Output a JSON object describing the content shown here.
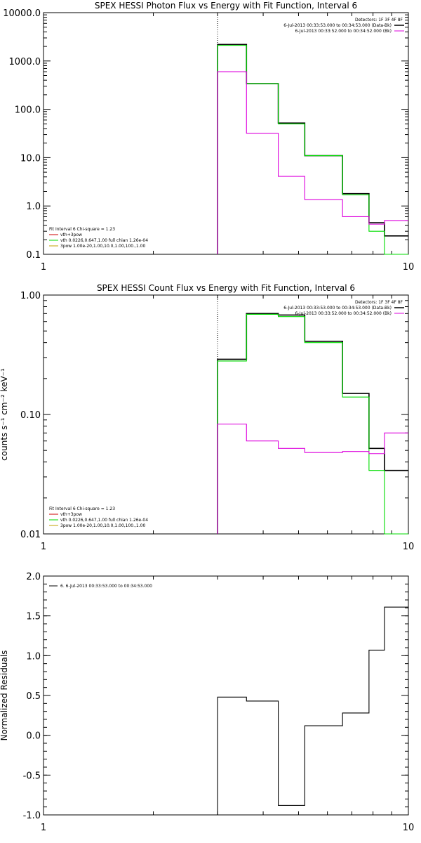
{
  "colors": {
    "data": "#000000",
    "green": "#00dd00",
    "magenta": "#dd00dd",
    "olive": "#c0a000",
    "red": "#cc0000"
  },
  "chart_data": [
    {
      "type": "line",
      "title": "SPEX HESSI Photon Flux vs Energy with Fit Function, Interval 6",
      "ylabel": "",
      "xscale": "log",
      "yscale": "log",
      "xlim": [
        1,
        10
      ],
      "ylim": [
        0.1,
        10000
      ],
      "xtick_values": [
        1,
        10
      ],
      "xtick_labels": [
        "1",
        "10"
      ],
      "ytick_values": [
        0.1,
        1,
        10,
        100,
        1000,
        10000
      ],
      "ytick_labels": [
        "0.1",
        "1.0",
        "10.0",
        "100.0",
        "1000.0",
        "10000.0"
      ],
      "vline": 3.0,
      "legend_top": [
        {
          "text": "Detectors: 1F 3F 4F 8F",
          "color": "",
          "lw": 0
        },
        {
          "text": "6-Jul-2013 00:33:53.000 to 00:34:53.000 (Data-Bk)",
          "color": "#000000",
          "lw": 1.5
        },
        {
          "text": "6-Jul-2013 00:33:52.000 to 00:34:52.000 (Bk)",
          "color": "#dd00dd",
          "lw": 1
        }
      ],
      "legend_bottom": [
        {
          "text": "Fit Interval  6    Chi-square = 1.23",
          "color": "",
          "lw": 0
        },
        {
          "text": "vth+3pow",
          "color": "#cc0000",
          "lw": 1
        },
        {
          "text": "vth 0.0226,0.647,1.00   full chian 1.26e-04",
          "color": "#00dd00",
          "lw": 1
        },
        {
          "text": "3pow 1.00e-20,1.00,10.0,1.00,100.,1.00",
          "color": "#c0a000",
          "lw": 1
        }
      ],
      "series": [
        {
          "role": "data",
          "color": "#000000",
          "edges": [
            3.0,
            3.6,
            4.4,
            5.2,
            6.6,
            7.8,
            8.6,
            10.0
          ],
          "values": [
            2200,
            340,
            52,
            11,
            1.8,
            0.45,
            0.24
          ]
        },
        {
          "role": "model",
          "color": "#00dd00",
          "edges": [
            3.0,
            3.6,
            4.4,
            5.2,
            6.6,
            7.8,
            8.6,
            10.0
          ],
          "values": [
            2100,
            340,
            50,
            11,
            1.7,
            0.3,
            0.1
          ]
        },
        {
          "role": "background",
          "color": "#dd00dd",
          "edges": [
            3.0,
            3.6,
            4.4,
            5.2,
            6.6,
            7.8,
            8.6,
            10.0
          ],
          "values": [
            600,
            32,
            4.1,
            1.35,
            0.6,
            0.42,
            0.5
          ]
        }
      ]
    },
    {
      "type": "line",
      "title": "SPEX HESSI Count Flux vs Energy with Fit Function, Interval 6",
      "ylabel": "counts s⁻¹ cm⁻² keV⁻¹",
      "xscale": "log",
      "yscale": "log",
      "xlim": [
        1,
        10
      ],
      "ylim": [
        0.01,
        1
      ],
      "xtick_values": [
        1,
        10
      ],
      "xtick_labels": [
        "1",
        "10"
      ],
      "ytick_values": [
        0.01,
        0.1,
        1
      ],
      "ytick_labels": [
        "0.01",
        "0.10",
        "1.00"
      ],
      "vline": 3.0,
      "legend_top": [
        {
          "text": "Detectors: 1F 3F 4F 8F",
          "color": "",
          "lw": 0
        },
        {
          "text": "6-Jul-2013 00:33:53.000 to 00:34:53.000 (Data-Bk)",
          "color": "#000000",
          "lw": 1.5
        },
        {
          "text": "6-Jul-2013 00:33:52.000 to 00:34:52.000 (Bk)",
          "color": "#dd00dd",
          "lw": 1
        }
      ],
      "legend_bottom": [
        {
          "text": "Fit Interval  6    Chi-square = 1.23",
          "color": "",
          "lw": 0
        },
        {
          "text": "vth+3pow",
          "color": "#cc0000",
          "lw": 1
        },
        {
          "text": "vth 0.0226,0.647,1.00   full chian 1.26e-04",
          "color": "#00dd00",
          "lw": 1
        },
        {
          "text": "3pow 1.00e-20,1.00,10.0,1.00,100.,1.00",
          "color": "#c0a000",
          "lw": 1
        }
      ],
      "series": [
        {
          "role": "data",
          "color": "#000000",
          "edges": [
            3.0,
            3.6,
            4.4,
            5.2,
            6.6,
            7.8,
            8.6,
            10.0
          ],
          "values": [
            0.29,
            0.7,
            0.68,
            0.41,
            0.15,
            0.052,
            0.034
          ]
        },
        {
          "role": "model",
          "color": "#00dd00",
          "edges": [
            3.0,
            3.6,
            4.4,
            5.2,
            6.6,
            7.8,
            8.6,
            10.0
          ],
          "values": [
            0.28,
            0.69,
            0.66,
            0.4,
            0.14,
            0.034,
            0.001
          ]
        },
        {
          "role": "background",
          "color": "#dd00dd",
          "edges": [
            3.0,
            3.6,
            4.4,
            5.2,
            6.6,
            7.8,
            8.6,
            10.0
          ],
          "values": [
            0.083,
            0.06,
            0.052,
            0.048,
            0.049,
            0.047,
            0.07
          ]
        }
      ]
    },
    {
      "type": "line",
      "title": "",
      "ylabel": "Normalized Residuals",
      "xscale": "log",
      "yscale": "linear",
      "xlim": [
        1,
        10
      ],
      "ylim": [
        -1.0,
        2.0
      ],
      "xtick_values": [
        1,
        10
      ],
      "xtick_labels": [
        "1",
        "10"
      ],
      "ytick_values": [
        -1.0,
        -0.5,
        0.0,
        0.5,
        1.0,
        1.5,
        2.0
      ],
      "ytick_labels": [
        "-1.0",
        "-0.5",
        "0.0",
        "0.5",
        "1.0",
        "1.5",
        "2.0"
      ],
      "vline": null,
      "legend_top": [],
      "legend_bottom": [],
      "legend_topleft": [
        {
          "text": "6.  6-Jul-2013 00:33:53.000 to 00:34:53.000",
          "color": "#000000",
          "lw": 1
        }
      ],
      "series": [
        {
          "role": "residual",
          "color": "#000000",
          "edges": [
            3.0,
            3.6,
            4.4,
            5.2,
            6.6,
            7.8,
            8.6,
            10.0
          ],
          "values": [
            0.48,
            0.43,
            -0.88,
            0.12,
            0.28,
            1.07,
            1.61
          ]
        }
      ]
    }
  ]
}
